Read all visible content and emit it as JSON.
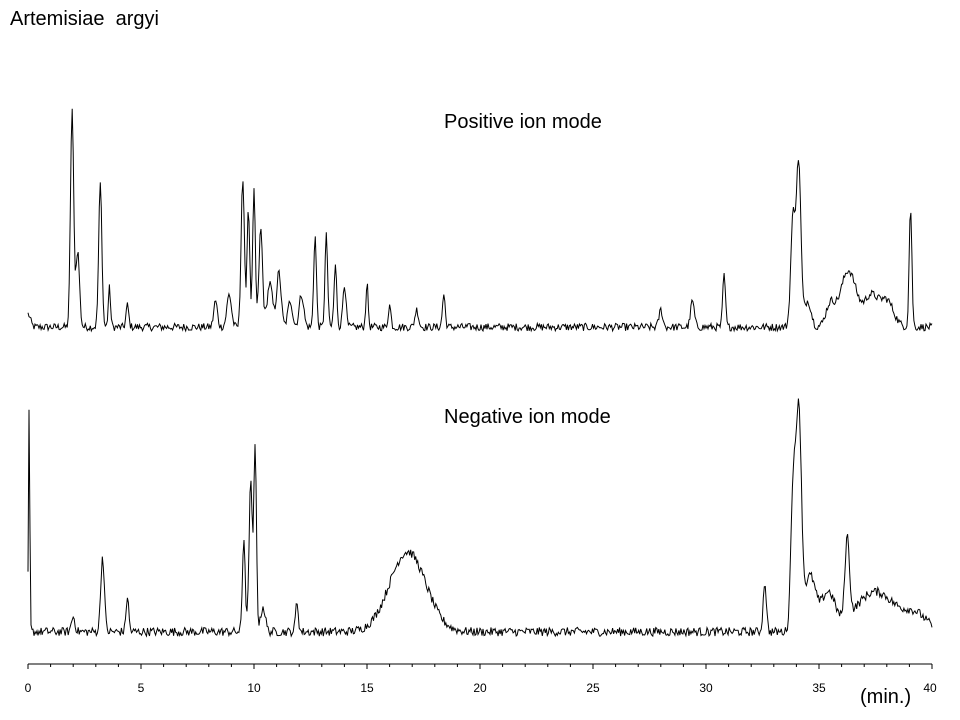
{
  "chart_data": {
    "type": "line",
    "title": "Artemisiae  argyi",
    "xlabel": "(min.)",
    "xlim": [
      0,
      40
    ],
    "x_ticks": [
      0,
      5,
      10,
      15,
      20,
      25,
      30,
      35,
      40
    ],
    "x_tick_labels": [
      "0",
      "5",
      "10",
      "15",
      "20",
      "25",
      "30",
      "35",
      "40"
    ],
    "grid": false,
    "y_axis_shown": false,
    "baseline": {
      "positive": 0.05,
      "negative": 0.045
    },
    "series": [
      {
        "name": "Positive ion mode",
        "baseline": 0.05,
        "peaks": [
          {
            "t": 0.0,
            "h": 0.06,
            "w": 0.1
          },
          {
            "t": 1.95,
            "h": 1.0,
            "w": 0.07
          },
          {
            "t": 2.2,
            "h": 0.35,
            "w": 0.08
          },
          {
            "t": 3.2,
            "h": 0.66,
            "w": 0.07
          },
          {
            "t": 3.6,
            "h": 0.18,
            "w": 0.05
          },
          {
            "t": 4.4,
            "h": 0.1,
            "w": 0.06
          },
          {
            "t": 8.3,
            "h": 0.12,
            "w": 0.08
          },
          {
            "t": 8.9,
            "h": 0.15,
            "w": 0.1
          },
          {
            "t": 9.5,
            "h": 0.68,
            "w": 0.07
          },
          {
            "t": 9.75,
            "h": 0.55,
            "w": 0.06
          },
          {
            "t": 10.0,
            "h": 0.62,
            "w": 0.06
          },
          {
            "t": 10.3,
            "h": 0.45,
            "w": 0.08
          },
          {
            "t": 10.7,
            "h": 0.2,
            "w": 0.12
          },
          {
            "t": 11.1,
            "h": 0.25,
            "w": 0.1
          },
          {
            "t": 11.6,
            "h": 0.12,
            "w": 0.1
          },
          {
            "t": 12.1,
            "h": 0.15,
            "w": 0.1
          },
          {
            "t": 12.7,
            "h": 0.42,
            "w": 0.06
          },
          {
            "t": 13.2,
            "h": 0.42,
            "w": 0.06
          },
          {
            "t": 13.6,
            "h": 0.28,
            "w": 0.06
          },
          {
            "t": 14.0,
            "h": 0.2,
            "w": 0.07
          },
          {
            "t": 15.0,
            "h": 0.2,
            "w": 0.05
          },
          {
            "t": 16.0,
            "h": 0.1,
            "w": 0.06
          },
          {
            "t": 17.2,
            "h": 0.08,
            "w": 0.08
          },
          {
            "t": 18.4,
            "h": 0.15,
            "w": 0.06
          },
          {
            "t": 28.0,
            "h": 0.08,
            "w": 0.08
          },
          {
            "t": 29.4,
            "h": 0.12,
            "w": 0.08
          },
          {
            "t": 30.8,
            "h": 0.24,
            "w": 0.06
          },
          {
            "t": 33.85,
            "h": 0.5,
            "w": 0.1
          },
          {
            "t": 34.1,
            "h": 0.75,
            "w": 0.1
          },
          {
            "t": 34.5,
            "h": 0.12,
            "w": 0.15
          },
          {
            "t": 35.5,
            "h": 0.1,
            "w": 0.2
          },
          {
            "t": 36.3,
            "h": 0.26,
            "w": 0.35
          },
          {
            "t": 37.3,
            "h": 0.14,
            "w": 0.3
          },
          {
            "t": 38.0,
            "h": 0.12,
            "w": 0.3
          },
          {
            "t": 39.05,
            "h": 0.55,
            "w": 0.06
          }
        ]
      },
      {
        "name": "Negative ion mode",
        "baseline": 0.045,
        "peaks": [
          {
            "t": 0.05,
            "h": 0.9,
            "w": 0.03
          },
          {
            "t": 2.0,
            "h": 0.06,
            "w": 0.08
          },
          {
            "t": 3.3,
            "h": 0.3,
            "w": 0.08
          },
          {
            "t": 4.4,
            "h": 0.14,
            "w": 0.06
          },
          {
            "t": 9.55,
            "h": 0.38,
            "w": 0.06
          },
          {
            "t": 9.85,
            "h": 0.6,
            "w": 0.07
          },
          {
            "t": 10.05,
            "h": 0.73,
            "w": 0.06
          },
          {
            "t": 10.4,
            "h": 0.1,
            "w": 0.1
          },
          {
            "t": 11.9,
            "h": 0.12,
            "w": 0.06
          },
          {
            "t": 16.8,
            "h": 0.32,
            "w": 0.8
          },
          {
            "t": 32.6,
            "h": 0.2,
            "w": 0.07
          },
          {
            "t": 33.85,
            "h": 0.55,
            "w": 0.1
          },
          {
            "t": 34.1,
            "h": 0.88,
            "w": 0.12
          },
          {
            "t": 34.6,
            "h": 0.22,
            "w": 0.25
          },
          {
            "t": 35.4,
            "h": 0.15,
            "w": 0.3
          },
          {
            "t": 36.25,
            "h": 0.32,
            "w": 0.1
          },
          {
            "t": 37.5,
            "h": 0.16,
            "w": 0.9
          },
          {
            "t": 39.3,
            "h": 0.06,
            "w": 0.5
          }
        ]
      }
    ]
  }
}
